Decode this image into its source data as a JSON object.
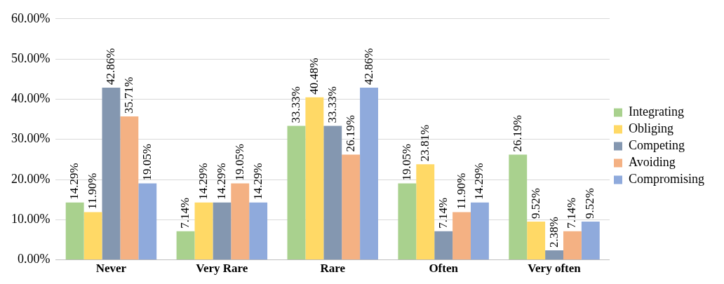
{
  "chart_data": {
    "type": "bar",
    "categories": [
      "Never",
      "Very Rare",
      "Rare",
      "Often",
      "Very often"
    ],
    "series": [
      {
        "name": "Integrating",
        "color": "#a9d18e",
        "values": [
          14.29,
          7.14,
          33.33,
          19.05,
          26.19
        ],
        "value_labels": [
          "14.29%",
          "7.14%",
          "33.33%",
          "19.05%",
          "26.19%"
        ]
      },
      {
        "name": "Obliging",
        "color": "#ffd966",
        "values": [
          11.9,
          14.29,
          40.48,
          23.81,
          9.52
        ],
        "value_labels": [
          "11.90%",
          "14.29%",
          "40.48%",
          "23.81%",
          "9.52%"
        ]
      },
      {
        "name": "Competing",
        "color": "#8497b0",
        "values": [
          42.86,
          14.29,
          33.33,
          7.14,
          2.38
        ],
        "value_labels": [
          "42.86%",
          "14.29%",
          "33.33%",
          "7.14%",
          "2.38%"
        ]
      },
      {
        "name": "Avoiding",
        "color": "#f4b183",
        "values": [
          35.71,
          19.05,
          26.19,
          11.9,
          7.14
        ],
        "value_labels": [
          "35.71%",
          "19.05%",
          "26.19%",
          "11.90%",
          "7.14%"
        ]
      },
      {
        "name": "Compromising",
        "color": "#8faadc",
        "values": [
          19.05,
          14.29,
          42.86,
          14.29,
          9.52
        ],
        "value_labels": [
          "19.05%",
          "14.29%",
          "42.86%",
          "14.29%",
          "9.52%"
        ]
      }
    ],
    "ylim": [
      0,
      60
    ],
    "yticks": [
      {
        "value": 0,
        "label": "0.00%"
      },
      {
        "value": 10,
        "label": "10.00%"
      },
      {
        "value": 20,
        "label": "20.00%"
      },
      {
        "value": 30,
        "label": "30.00%"
      },
      {
        "value": 40,
        "label": "40.00%"
      },
      {
        "value": 50,
        "label": "50.00%"
      },
      {
        "value": 60,
        "label": "60.00%"
      }
    ],
    "grid": "y",
    "legend": "right"
  }
}
